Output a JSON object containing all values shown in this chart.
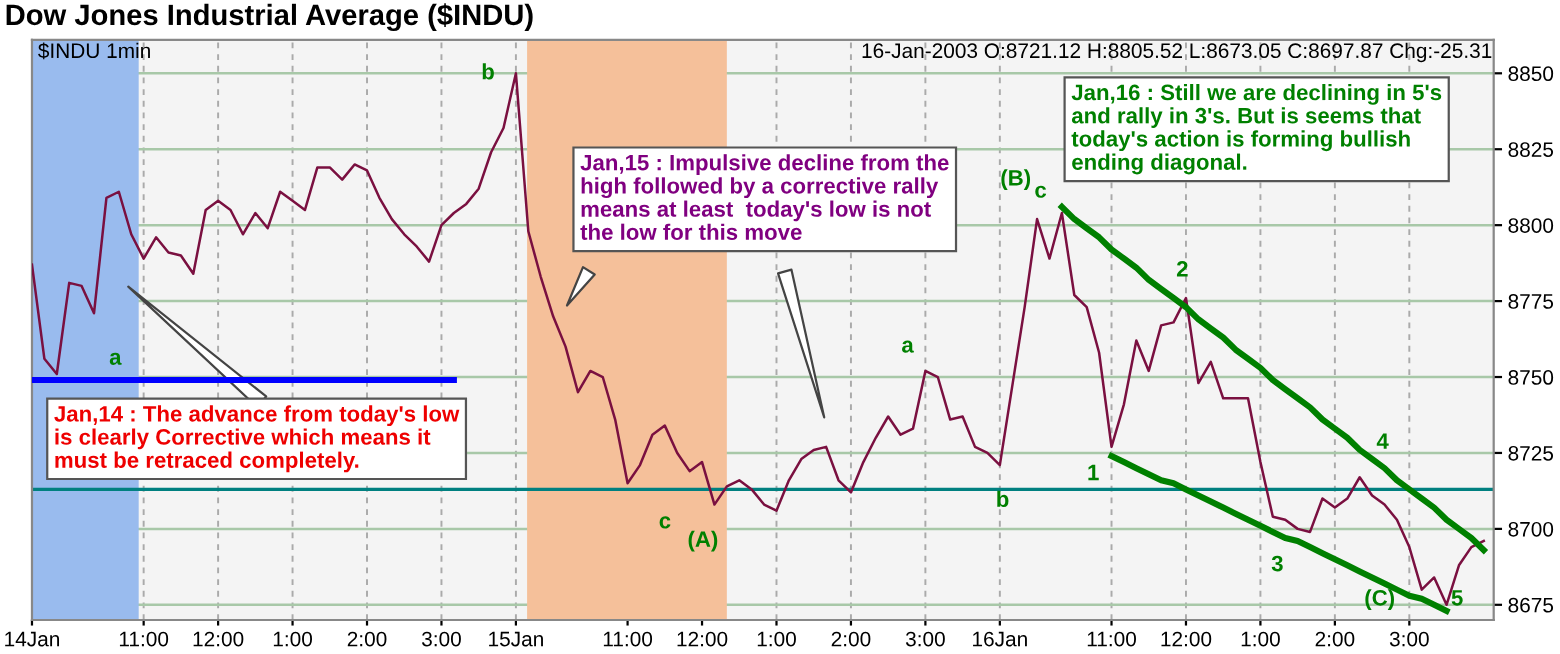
{
  "chart_data": {
    "type": "line",
    "title": "Dow Jones Industrial Average ($INDU)",
    "subtitle": "16-Jan-2003 O:8721.12 H:8805.52 L:8673.05 C:8697.87 Chg:-25.31",
    "categories": [
      "14Jan",
      null,
      null,
      null,
      null,
      null,
      null,
      null,
      null,
      "11:00",
      null,
      null,
      null,
      null,
      null,
      "12:00",
      null,
      null,
      null,
      null,
      null,
      "1:00",
      null,
      null,
      null,
      null,
      null,
      "2:00",
      null,
      null,
      null,
      null,
      null,
      "3:00",
      null,
      null,
      null,
      null,
      null,
      "15Jan",
      null,
      null,
      null,
      null,
      null,
      null,
      null,
      null,
      "11:00",
      null,
      null,
      null,
      null,
      null,
      "12:00",
      null,
      null,
      null,
      null,
      null,
      "1:00",
      null,
      null,
      null,
      null,
      null,
      "2:00",
      null,
      null,
      null,
      null,
      null,
      "3:00",
      null,
      null,
      null,
      null,
      null,
      "16Jan",
      null,
      null,
      null,
      null,
      null,
      null,
      null,
      null,
      "11:00",
      null,
      null,
      null,
      null,
      null,
      "12:00",
      null,
      null,
      null,
      null,
      null,
      "1:00",
      null,
      null,
      null,
      null,
      null,
      "2:00",
      null,
      null,
      null,
      null,
      null,
      "3:00",
      null,
      null,
      null,
      null,
      null,
      null
    ],
    "ylim": [
      8670,
      8861
    ],
    "yticks": [
      8675,
      8700,
      8725,
      8750,
      8775,
      8800,
      8825,
      8850
    ],
    "grid": true,
    "marker": "none",
    "line_style": "solid",
    "series": [
      {
        "color": "#7a1040",
        "values": [
          8787,
          8756,
          8751,
          8781,
          8780,
          8771,
          8809,
          8811,
          8797,
          8789,
          8796,
          8791,
          8790,
          8784,
          8805,
          8808,
          8805,
          8797,
          8804,
          8799,
          8811,
          8808,
          8805,
          8819,
          8819,
          8815,
          8820,
          8818,
          8809,
          8802,
          8797,
          8793,
          8788,
          8800,
          8804,
          8807,
          8812,
          8824,
          8832,
          8850,
          8798,
          8783,
          8770,
          8760,
          8745,
          8752,
          8750,
          8736,
          8715,
          8721,
          8731,
          8734,
          8725,
          8719,
          8722,
          8708,
          8714,
          8716,
          8713,
          8708,
          8706,
          8716,
          8723,
          8726,
          8727,
          8716,
          8712,
          8722,
          8730,
          8737,
          8731,
          8733,
          8752,
          8750,
          8736,
          8737,
          8727,
          8725,
          8721,
          8747,
          8773,
          8802,
          8789,
          8804,
          8777,
          8773,
          8758,
          8727,
          8741,
          8762,
          8752,
          8767,
          8768,
          8776,
          8748,
          8755,
          8743,
          8743,
          8743,
          8722,
          8704,
          8703,
          8700,
          8699,
          8710,
          8707,
          8710,
          8717,
          8711,
          8708,
          8703,
          8694,
          8680,
          8684,
          8675,
          8688,
          8694,
          8696
        ]
      },
      {
        "color": "#0000ff",
        "values": [
          8749,
          8749,
          8749,
          8749,
          8749,
          8749,
          8749,
          8749,
          8749,
          8749,
          8749,
          8749,
          8749,
          8749,
          8749,
          8749,
          8749,
          8749,
          8749,
          8749,
          8749,
          8749,
          8749,
          8749,
          8749,
          8749,
          8749,
          8749,
          8749,
          8749,
          8749,
          8749,
          8749,
          8749,
          8749,
          null,
          null,
          null,
          null,
          null,
          null,
          null,
          null,
          null,
          null,
          null,
          null,
          null,
          null,
          null,
          null,
          null,
          null,
          null,
          null,
          null,
          null,
          null,
          null,
          null,
          null,
          null,
          null,
          null,
          null,
          null,
          null,
          null,
          null,
          null,
          null,
          null,
          null,
          null,
          null,
          null,
          null,
          null,
          null,
          null,
          null,
          null,
          null,
          null,
          null,
          null,
          null,
          null,
          null,
          null,
          null,
          null,
          null,
          null,
          null,
          null,
          null,
          null,
          null,
          null,
          null,
          null,
          null,
          null,
          null,
          null,
          null,
          null,
          null,
          null,
          null,
          null,
          null,
          null,
          null,
          null,
          null,
          null
        ]
      },
      {
        "color": "#008000",
        "values": [
          null,
          null,
          null,
          null,
          null,
          null,
          null,
          null,
          null,
          null,
          null,
          null,
          null,
          null,
          null,
          null,
          null,
          null,
          null,
          null,
          null,
          null,
          null,
          null,
          null,
          null,
          null,
          null,
          null,
          null,
          null,
          null,
          null,
          null,
          null,
          null,
          null,
          null,
          null,
          null,
          null,
          null,
          null,
          null,
          null,
          null,
          null,
          null,
          null,
          null,
          null,
          null,
          null,
          null,
          null,
          null,
          null,
          null,
          null,
          null,
          null,
          null,
          null,
          null,
          null,
          null,
          null,
          null,
          null,
          null,
          null,
          null,
          null,
          null,
          null,
          null,
          null,
          null,
          null,
          null,
          null,
          null,
          null,
          8806,
          8802,
          8799,
          8796,
          8792,
          8789,
          8786,
          8782,
          8779,
          8776,
          8773,
          8769,
          8766,
          8763,
          8759,
          8756,
          8753,
          8749,
          8746,
          8743,
          8740,
          8736,
          8733,
          8730,
          8726,
          8723,
          8720,
          8716,
          8713,
          8710,
          8707,
          8703,
          8700,
          8697,
          8693
        ]
      },
      {
        "color": "#008000",
        "values": [
          null,
          null,
          null,
          null,
          null,
          null,
          null,
          null,
          null,
          null,
          null,
          null,
          null,
          null,
          null,
          null,
          null,
          null,
          null,
          null,
          null,
          null,
          null,
          null,
          null,
          null,
          null,
          null,
          null,
          null,
          null,
          null,
          null,
          null,
          null,
          null,
          null,
          null,
          null,
          null,
          null,
          null,
          null,
          null,
          null,
          null,
          null,
          null,
          null,
          null,
          null,
          null,
          null,
          null,
          null,
          null,
          null,
          null,
          null,
          null,
          null,
          null,
          null,
          null,
          null,
          null,
          null,
          null,
          null,
          null,
          null,
          null,
          null,
          null,
          null,
          null,
          null,
          null,
          null,
          null,
          null,
          null,
          null,
          null,
          null,
          null,
          null,
          8724,
          8722,
          8720,
          8718,
          8716,
          8715,
          8713,
          8711,
          8709,
          8707,
          8705,
          8703,
          8701,
          8699,
          8697,
          8696,
          8694,
          8692,
          8690,
          8688,
          8686,
          8684,
          8682,
          8680,
          8678,
          8677,
          8675,
          8673,
          null,
          null,
          null
        ]
      }
    ],
    "ref_lines": [
      {
        "axis": "y",
        "value": 8713,
        "color": "#008080"
      }
    ],
    "annotations": [
      "Jan,14 : The advance from today's low\nis clearly Corrective which means it\nmust be retraced completely.",
      "Jan,15 : Impulsive decline from the\nhigh followed by a corrective rally\nmeans at least  today's low is not\nthe low for this move",
      "Jan,16 : Still we are declining in 5's\nand rally in 3's. But is seems that\ntoday's action is forming bullish\nending diagonal.",
      "$INDU 1min",
      "a",
      "b",
      "c",
      "(A)",
      "a",
      "b",
      "(B)",
      "c",
      "1",
      "2",
      "3",
      "4",
      "(C)",
      "5"
    ]
  }
}
